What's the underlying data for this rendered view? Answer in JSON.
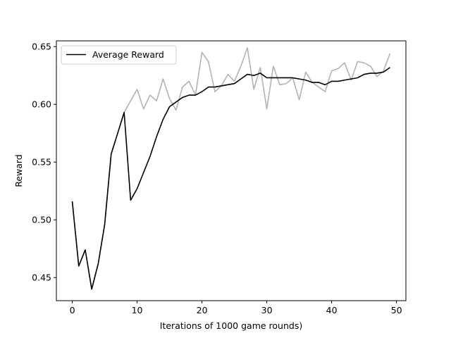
{
  "chart_data": {
    "type": "line",
    "title": "",
    "xlabel": "Iterations of 1000 game rounds)",
    "ylabel": "Reward",
    "xlim": [
      -2.45,
      51.45
    ],
    "ylim": [
      0.43,
      0.655
    ],
    "xticks": [
      0,
      10,
      20,
      30,
      40,
      50
    ],
    "xtick_labels": [
      "0",
      "10",
      "20",
      "30",
      "40",
      "50"
    ],
    "yticks": [
      0.45,
      0.5,
      0.55,
      0.6,
      0.65
    ],
    "ytick_labels": [
      "0.45",
      "0.50",
      "0.55",
      "0.60",
      "0.65"
    ],
    "grid": false,
    "legend": {
      "position": "upper-left",
      "entries": [
        "Average Reward"
      ]
    },
    "x": [
      0,
      1,
      2,
      3,
      4,
      5,
      6,
      7,
      8,
      9,
      10,
      11,
      12,
      13,
      14,
      15,
      16,
      17,
      18,
      19,
      20,
      21,
      22,
      23,
      24,
      25,
      26,
      27,
      28,
      29,
      30,
      31,
      32,
      33,
      34,
      35,
      36,
      37,
      38,
      39,
      40,
      41,
      42,
      43,
      44,
      45,
      46,
      47,
      48,
      49
    ],
    "series": [
      {
        "name": "",
        "color": "#b3b3b3",
        "values": [
          0.516,
          0.46,
          0.474,
          0.44,
          0.462,
          0.496,
          0.557,
          0.575,
          0.593,
          0.603,
          0.613,
          0.596,
          0.608,
          0.603,
          0.622,
          0.605,
          0.595,
          0.615,
          0.62,
          0.608,
          0.645,
          0.637,
          0.611,
          0.616,
          0.626,
          0.62,
          0.633,
          0.649,
          0.613,
          0.632,
          0.596,
          0.633,
          0.617,
          0.618,
          0.623,
          0.604,
          0.628,
          0.619,
          0.615,
          0.611,
          0.629,
          0.631,
          0.636,
          0.621,
          0.637,
          0.636,
          0.633,
          0.624,
          0.629,
          0.644
        ]
      },
      {
        "name": "Average Reward",
        "color": "#000000",
        "values": [
          0.516,
          0.46,
          0.474,
          0.44,
          0.462,
          0.496,
          0.557,
          0.575,
          0.593,
          0.517,
          0.527,
          0.541,
          0.555,
          0.572,
          0.587,
          0.598,
          0.602,
          0.606,
          0.608,
          0.608,
          0.611,
          0.615,
          0.615,
          0.616,
          0.617,
          0.618,
          0.622,
          0.626,
          0.625,
          0.627,
          0.623,
          0.623,
          0.623,
          0.623,
          0.623,
          0.622,
          0.621,
          0.619,
          0.619,
          0.617,
          0.62,
          0.62,
          0.621,
          0.622,
          0.623,
          0.626,
          0.627,
          0.627,
          0.628,
          0.632
        ]
      }
    ]
  }
}
